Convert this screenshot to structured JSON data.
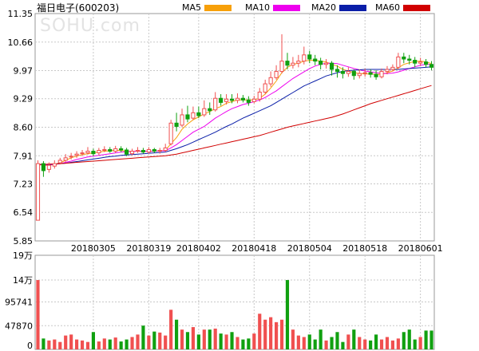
{
  "header": {
    "title": "福日电子(600203)",
    "watermark": "SOHU.com"
  },
  "legend": [
    {
      "name": "MA5",
      "color": "#f7a00a"
    },
    {
      "name": "MA10",
      "color": "#ee00ee"
    },
    {
      "name": "MA20",
      "color": "#0a1ea8"
    },
    {
      "name": "MA60",
      "color": "#d10000"
    }
  ],
  "colors": {
    "up": "#f05050",
    "down": "#10a010",
    "grid": "#c8c8c8",
    "frame": "#999999"
  },
  "chart_data": [
    {
      "type": "candlestick",
      "y_ticks": [
        "11.35",
        "10.66",
        "9.97",
        "9.29",
        "8.60",
        "7.91",
        "7.23",
        "6.54",
        "5.85"
      ],
      "ylim": [
        5.85,
        11.35
      ],
      "x_ticks": [
        {
          "label": "20180305",
          "index": 10
        },
        {
          "label": "20180319",
          "index": 20
        },
        {
          "label": "20180402",
          "index": 29
        },
        {
          "label": "20180418",
          "index": 39
        },
        {
          "label": "20180504",
          "index": 49
        },
        {
          "label": "20180518",
          "index": 59
        },
        {
          "label": "20180601",
          "index": 69
        }
      ],
      "candles": [
        [
          6.35,
          7.72,
          7.8,
          6.35
        ],
        [
          7.72,
          7.55,
          7.78,
          7.4
        ],
        [
          7.58,
          7.68,
          7.75,
          7.5
        ],
        [
          7.66,
          7.72,
          7.8,
          7.6
        ],
        [
          7.74,
          7.8,
          7.86,
          7.7
        ],
        [
          7.8,
          7.86,
          7.95,
          7.76
        ],
        [
          7.88,
          7.9,
          7.98,
          7.82
        ],
        [
          7.92,
          7.95,
          8.02,
          7.86
        ],
        [
          7.96,
          7.98,
          8.05,
          7.9
        ],
        [
          7.98,
          8.02,
          8.12,
          7.94
        ],
        [
          8.02,
          7.96,
          8.08,
          7.9
        ],
        [
          7.98,
          8.04,
          8.1,
          7.92
        ],
        [
          8.04,
          8.06,
          8.14,
          8.0
        ],
        [
          8.06,
          8.02,
          8.12,
          7.98
        ],
        [
          8.02,
          8.08,
          8.15,
          7.98
        ],
        [
          8.08,
          8.05,
          8.14,
          8.0
        ],
        [
          8.05,
          7.95,
          8.1,
          7.9
        ],
        [
          7.96,
          8.02,
          8.08,
          7.92
        ],
        [
          8.02,
          8.04,
          8.12,
          7.98
        ],
        [
          8.04,
          8.0,
          8.1,
          7.96
        ],
        [
          8.0,
          8.06,
          8.12,
          7.96
        ],
        [
          8.06,
          8.02,
          8.1,
          7.98
        ],
        [
          8.02,
          8.04,
          8.1,
          7.96
        ],
        [
          8.04,
          8.1,
          8.2,
          8.0
        ],
        [
          8.2,
          8.7,
          8.78,
          8.16
        ],
        [
          8.7,
          8.62,
          8.95,
          8.5
        ],
        [
          8.65,
          8.9,
          9.05,
          8.6
        ],
        [
          8.9,
          8.8,
          9.12,
          8.72
        ],
        [
          8.82,
          8.95,
          9.1,
          8.78
        ],
        [
          8.95,
          8.88,
          9.1,
          8.82
        ],
        [
          8.9,
          9.05,
          9.25,
          8.85
        ],
        [
          9.05,
          9.0,
          9.2,
          8.9
        ],
        [
          9.02,
          9.3,
          9.45,
          8.98
        ],
        [
          9.3,
          9.2,
          9.4,
          9.12
        ],
        [
          9.22,
          9.28,
          9.4,
          9.15
        ],
        [
          9.28,
          9.25,
          9.4,
          9.18
        ],
        [
          9.25,
          9.3,
          9.42,
          9.18
        ],
        [
          9.3,
          9.26,
          9.38,
          9.2
        ],
        [
          9.26,
          9.2,
          9.35,
          9.12
        ],
        [
          9.22,
          9.28,
          9.36,
          9.18
        ],
        [
          9.28,
          9.45,
          9.55,
          9.22
        ],
        [
          9.45,
          9.65,
          9.75,
          9.4
        ],
        [
          9.65,
          9.8,
          9.95,
          9.58
        ],
        [
          9.8,
          9.95,
          10.1,
          9.75
        ],
        [
          9.95,
          10.2,
          10.85,
          9.9
        ],
        [
          10.2,
          10.1,
          10.4,
          10.0
        ],
        [
          10.1,
          10.15,
          10.3,
          10.02
        ],
        [
          10.15,
          10.2,
          10.35,
          10.05
        ],
        [
          10.2,
          10.35,
          10.55,
          10.12
        ],
        [
          10.35,
          10.25,
          10.45,
          10.15
        ],
        [
          10.25,
          10.2,
          10.35,
          10.1
        ],
        [
          10.2,
          10.12,
          10.28,
          10.0
        ],
        [
          10.12,
          10.15,
          10.25,
          10.02
        ],
        [
          10.15,
          10.0,
          10.2,
          9.85
        ],
        [
          10.0,
          9.95,
          10.1,
          9.8
        ],
        [
          9.95,
          9.9,
          10.05,
          9.78
        ],
        [
          9.9,
          9.95,
          10.05,
          9.82
        ],
        [
          9.95,
          9.85,
          10.0,
          9.75
        ],
        [
          9.85,
          9.9,
          10.0,
          9.78
        ],
        [
          9.9,
          9.92,
          10.02,
          9.82
        ],
        [
          9.92,
          9.88,
          10.0,
          9.8
        ],
        [
          9.88,
          9.82,
          9.98,
          9.75
        ],
        [
          9.82,
          9.95,
          10.02,
          9.78
        ],
        [
          9.95,
          10.0,
          10.08,
          9.88
        ],
        [
          10.0,
          10.05,
          10.12,
          9.95
        ],
        [
          10.05,
          10.3,
          10.4,
          10.0
        ],
        [
          10.3,
          10.25,
          10.4,
          10.15
        ],
        [
          10.25,
          10.22,
          10.35,
          10.12
        ],
        [
          10.22,
          10.15,
          10.3,
          10.05
        ],
        [
          10.15,
          10.18,
          10.28,
          10.08
        ],
        [
          10.18,
          10.12,
          10.25,
          10.05
        ],
        [
          10.12,
          10.05,
          10.2,
          9.98
        ]
      ],
      "ma5": [
        7.7,
        7.68,
        7.68,
        7.7,
        7.74,
        7.8,
        7.86,
        7.9,
        7.94,
        7.96,
        7.98,
        8.0,
        8.02,
        8.03,
        8.04,
        8.04,
        8.02,
        8.02,
        8.02,
        8.02,
        8.02,
        8.02,
        8.03,
        8.04,
        8.2,
        8.35,
        8.55,
        8.68,
        8.78,
        8.85,
        8.92,
        8.98,
        9.05,
        9.1,
        9.18,
        9.22,
        9.26,
        9.26,
        9.26,
        9.26,
        9.3,
        9.4,
        9.55,
        9.72,
        9.92,
        10.05,
        10.12,
        10.15,
        10.2,
        10.22,
        10.22,
        10.2,
        10.18,
        10.12,
        10.08,
        10.0,
        9.96,
        9.92,
        9.9,
        9.89,
        9.89,
        9.88,
        9.88,
        9.92,
        9.96,
        10.04,
        10.12,
        10.16,
        10.19,
        10.2,
        10.18,
        10.14
      ],
      "ma10": [
        7.7,
        7.69,
        7.69,
        7.7,
        7.72,
        7.75,
        7.78,
        7.82,
        7.85,
        7.88,
        7.9,
        7.92,
        7.94,
        7.96,
        7.98,
        8.0,
        8.01,
        8.02,
        8.02,
        8.02,
        8.02,
        8.02,
        8.03,
        8.03,
        8.1,
        8.18,
        8.28,
        8.38,
        8.48,
        8.55,
        8.62,
        8.72,
        8.82,
        8.9,
        8.98,
        9.05,
        9.1,
        9.15,
        9.18,
        9.22,
        9.26,
        9.32,
        9.4,
        9.48,
        9.58,
        9.68,
        9.78,
        9.86,
        9.94,
        10.02,
        10.08,
        10.12,
        10.15,
        10.15,
        10.14,
        10.1,
        10.06,
        10.02,
        9.99,
        9.96,
        9.94,
        9.92,
        9.9,
        9.9,
        9.91,
        9.94,
        9.98,
        10.02,
        10.06,
        10.1,
        10.12,
        10.12
      ],
      "ma20": [
        7.7,
        7.7,
        7.7,
        7.71,
        7.72,
        7.73,
        7.75,
        7.77,
        7.79,
        7.81,
        7.83,
        7.85,
        7.87,
        7.89,
        7.9,
        7.92,
        7.93,
        7.94,
        7.95,
        7.96,
        7.97,
        7.98,
        7.99,
        8.0,
        8.04,
        8.08,
        8.13,
        8.18,
        8.24,
        8.3,
        8.36,
        8.42,
        8.48,
        8.55,
        8.62,
        8.68,
        8.75,
        8.82,
        8.88,
        8.94,
        9.0,
        9.06,
        9.12,
        9.2,
        9.28,
        9.36,
        9.44,
        9.52,
        9.6,
        9.66,
        9.72,
        9.78,
        9.84,
        9.88,
        9.92,
        9.95,
        9.97,
        9.98,
        9.99,
        10.0,
        10.0,
        10.0,
        10.0,
        10.0,
        10.0,
        10.0,
        10.01,
        10.02,
        10.03,
        10.04,
        10.05,
        10.06
      ],
      "ma60": [
        7.7,
        7.7,
        7.71,
        7.71,
        7.72,
        7.73,
        7.74,
        7.75,
        7.76,
        7.77,
        7.78,
        7.79,
        7.8,
        7.81,
        7.82,
        7.83,
        7.84,
        7.85,
        7.86,
        7.87,
        7.88,
        7.89,
        7.9,
        7.91,
        7.93,
        7.95,
        7.98,
        8.01,
        8.04,
        8.07,
        8.1,
        8.13,
        8.16,
        8.19,
        8.22,
        8.25,
        8.28,
        8.31,
        8.34,
        8.37,
        8.4,
        8.44,
        8.48,
        8.52,
        8.56,
        8.6,
        8.63,
        8.66,
        8.69,
        8.72,
        8.75,
        8.78,
        8.81,
        8.84,
        8.88,
        8.92,
        8.97,
        9.02,
        9.07,
        9.12,
        9.17,
        9.21,
        9.25,
        9.29,
        9.33,
        9.37,
        9.41,
        9.45,
        9.49,
        9.53,
        9.57,
        9.61
      ]
    },
    {
      "type": "bar",
      "y_ticks": [
        "19万",
        "14万",
        "95741",
        "47870",
        "0"
      ],
      "ylim": [
        0,
        190000
      ],
      "values": [
        140000,
        22000,
        18000,
        20000,
        15000,
        28000,
        30000,
        20000,
        18000,
        15000,
        35000,
        16000,
        22000,
        20000,
        24000,
        16000,
        20000,
        25000,
        30000,
        48000,
        28000,
        36000,
        34000,
        28000,
        80000,
        60000,
        40000,
        35000,
        45000,
        30000,
        40000,
        40000,
        42000,
        32000,
        30000,
        35000,
        25000,
        20000,
        22000,
        32000,
        72000,
        60000,
        65000,
        55000,
        60000,
        140000,
        40000,
        28000,
        25000,
        30000,
        20000,
        40000,
        18000,
        25000,
        35000,
        15000,
        30000,
        40000,
        25000,
        20000,
        18000,
        30000,
        20000,
        25000,
        18000,
        22000,
        35000,
        40000,
        20000,
        25000,
        38000,
        38000
      ]
    }
  ]
}
